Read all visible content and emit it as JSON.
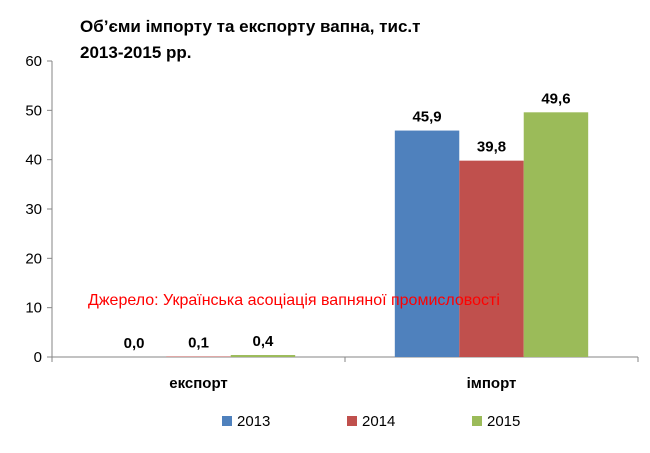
{
  "chart_data": {
    "type": "bar",
    "title_lines": [
      "Об’єми імпорту та експорту вапна, тис.т",
      "2013-2015 рр."
    ],
    "categories": [
      "експорт",
      "імпорт"
    ],
    "series": [
      {
        "name": "2013",
        "color": "#4f81bd",
        "values": [
          0.0,
          45.9
        ],
        "labels": [
          "0,0",
          "45,9"
        ]
      },
      {
        "name": "2014",
        "color": "#c0504d",
        "values": [
          0.1,
          39.8
        ],
        "labels": [
          "0,1",
          "39,8"
        ]
      },
      {
        "name": "2015",
        "color": "#9bbb59",
        "values": [
          0.4,
          49.6
        ],
        "labels": [
          "0,4",
          "49,6"
        ]
      }
    ],
    "ylim": [
      0,
      60
    ],
    "yticks": [
      0,
      10,
      20,
      30,
      40,
      50,
      60
    ],
    "grid": false,
    "legend_position": "bottom",
    "annotation": "Джерело: Українська асоціація вапняної промисловості",
    "annotation_color": "#ff0000"
  }
}
